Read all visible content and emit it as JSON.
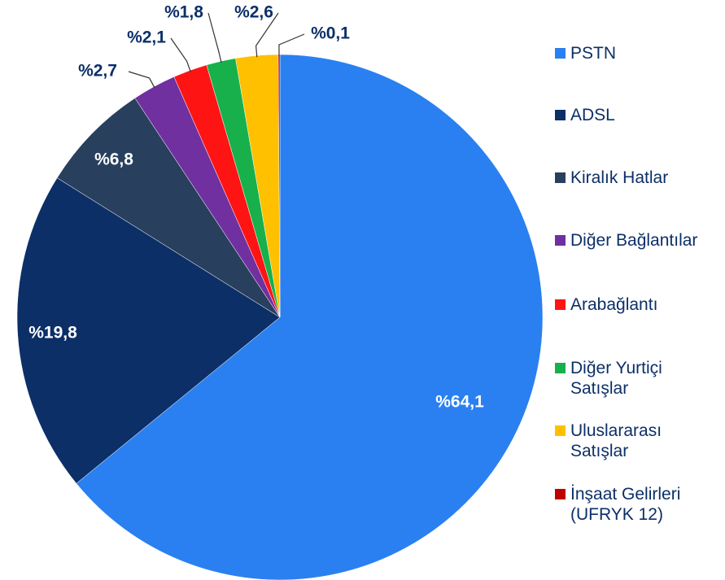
{
  "chart_data": {
    "type": "pie",
    "categories": [
      "PSTN",
      "ADSL",
      "Kiralık Hatlar",
      "Diğer Bağlantılar",
      "Arabağlantı",
      "Diğer Yurtiçi Satışlar",
      "Uluslararası Satışlar",
      "İnşaat Gelirleri (UFRYK 12)"
    ],
    "values": [
      64.1,
      19.8,
      6.8,
      2.7,
      2.1,
      1.8,
      2.6,
      0.1
    ],
    "value_labels": [
      "%64,1",
      "%19,8",
      "%6,8",
      "%2,7",
      "%2,1",
      "%1,8",
      "%2,6",
      "%0,1"
    ],
    "colors": [
      "#2a80f0",
      "#0c2f68",
      "#283f5e",
      "#7030a0",
      "#ff1414",
      "#17b04b",
      "#ffc000",
      "#c00000"
    ],
    "legend": "right"
  }
}
